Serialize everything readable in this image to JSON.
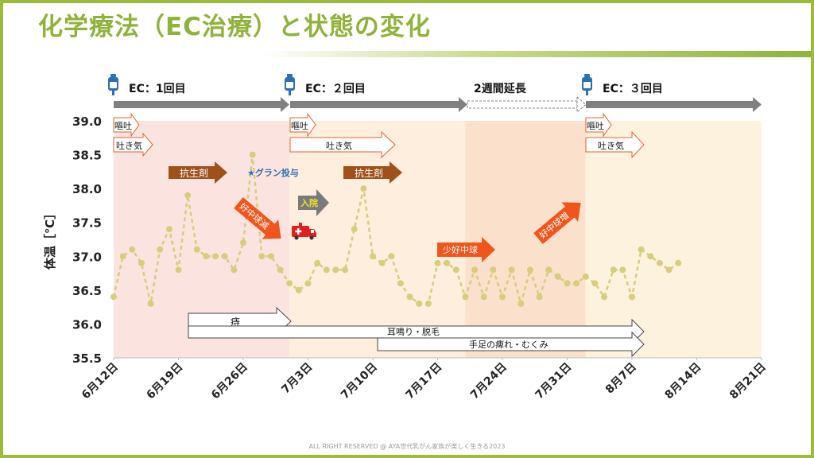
{
  "title": "化学療法（EC治療）と状態の変化",
  "footer": "ALL RIGHT RESERVED @ AYA世代乳がん家族が楽しく生きる2023",
  "colors": {
    "accent": "#8fb33a",
    "phase1": "#fbe4e0",
    "phase2": "#fdeede",
    "extension": "#fbe0cb",
    "phase3": "#fdf2de",
    "line": "#d6cd7f",
    "antibiotic": "#a0501a",
    "wbc": "#f0551e",
    "timeline": "#808080"
  },
  "treatments": [
    {
      "label": "EC：1回目",
      "icon": "iv-bag-icon"
    },
    {
      "label": "EC：２回目",
      "icon": "iv-bag-icon"
    },
    {
      "label": "2週間延長"
    },
    {
      "label": "EC：３回目",
      "icon": "iv-bag-icon"
    }
  ],
  "events": {
    "nausea_vomit": "嘔吐",
    "nausea": "吐き気",
    "antibiotic": "抗生剤",
    "gran": "★グラン投与",
    "wbc_down": "好中球減",
    "admission": "入院",
    "wbc_low": "少好中球",
    "wbc_up": "好中球増",
    "hemorrhoid": "痔",
    "tinnitus_hair": "耳鳴り・脱毛",
    "numbness": "手足の痺れ・むくみ",
    "ambulance": "ambulance-icon"
  },
  "chart_data": {
    "type": "line",
    "title": "",
    "xlabel": "",
    "ylabel": "体温［℃］",
    "ylim": [
      35.5,
      39.0
    ],
    "yticks": [
      "39.0",
      "38.5",
      "38.0",
      "37.5",
      "37.0",
      "36.5",
      "36.0",
      "35.5"
    ],
    "xticks": [
      "6月12日",
      "6月19日",
      "6月26日",
      "7月3日",
      "7月10日",
      "7月17日",
      "7月24日",
      "7月31日",
      "8月7日",
      "8月14日",
      "8月21日"
    ],
    "x_range_days": [
      0,
      70
    ],
    "series": [
      {
        "values": [
          [
            0,
            36.4
          ],
          [
            1,
            37.0
          ],
          [
            2,
            37.1
          ],
          [
            3,
            36.9
          ],
          [
            4,
            36.3
          ],
          [
            5,
            37.1
          ],
          [
            6,
            37.4
          ],
          [
            7,
            36.8
          ],
          [
            8,
            37.9
          ],
          [
            9,
            37.1
          ],
          [
            10,
            37.0
          ],
          [
            11,
            37.0
          ],
          [
            12,
            37.0
          ],
          [
            13,
            36.8
          ],
          [
            14,
            37.2
          ],
          [
            15,
            38.5
          ],
          [
            16,
            37.0
          ],
          [
            17,
            37.0
          ],
          [
            18,
            36.8
          ],
          [
            19,
            36.6
          ],
          [
            20,
            36.5
          ],
          [
            21,
            36.6
          ],
          [
            22,
            36.9
          ],
          [
            23,
            36.8
          ],
          [
            24,
            36.8
          ],
          [
            25,
            36.8
          ],
          [
            26,
            37.4
          ],
          [
            27,
            38.0
          ],
          [
            28,
            37.0
          ],
          [
            29,
            36.9
          ],
          [
            30,
            37.0
          ],
          [
            31,
            36.6
          ],
          [
            32,
            36.4
          ],
          [
            33,
            36.3
          ],
          [
            34,
            36.3
          ],
          [
            35,
            36.9
          ],
          [
            36,
            36.9
          ],
          [
            37,
            36.8
          ],
          [
            38,
            36.4
          ],
          [
            39,
            36.8
          ],
          [
            40,
            36.4
          ],
          [
            41,
            36.8
          ],
          [
            42,
            36.4
          ],
          [
            43,
            36.8
          ],
          [
            44,
            36.3
          ],
          [
            45,
            36.8
          ],
          [
            46,
            36.4
          ],
          [
            47,
            36.8
          ],
          [
            48,
            36.7
          ],
          [
            49,
            36.6
          ],
          [
            50,
            36.6
          ],
          [
            51,
            36.7
          ],
          [
            52,
            36.6
          ],
          [
            53,
            36.4
          ],
          [
            54,
            36.8
          ],
          [
            55,
            36.8
          ],
          [
            56,
            36.4
          ],
          [
            57,
            37.1
          ],
          [
            58,
            37.0
          ],
          [
            59,
            36.9
          ],
          [
            60,
            36.8
          ],
          [
            61,
            36.9
          ]
        ]
      }
    ],
    "phases": [
      {
        "name": "EC 1回目",
        "start": 0,
        "end": 19
      },
      {
        "name": "EC 2回目",
        "start": 19,
        "end": 38
      },
      {
        "name": "2週間延長",
        "start": 38,
        "end": 51
      },
      {
        "name": "EC 3回目",
        "start": 51,
        "end": 70
      }
    ],
    "grid": false,
    "legend": "none"
  }
}
